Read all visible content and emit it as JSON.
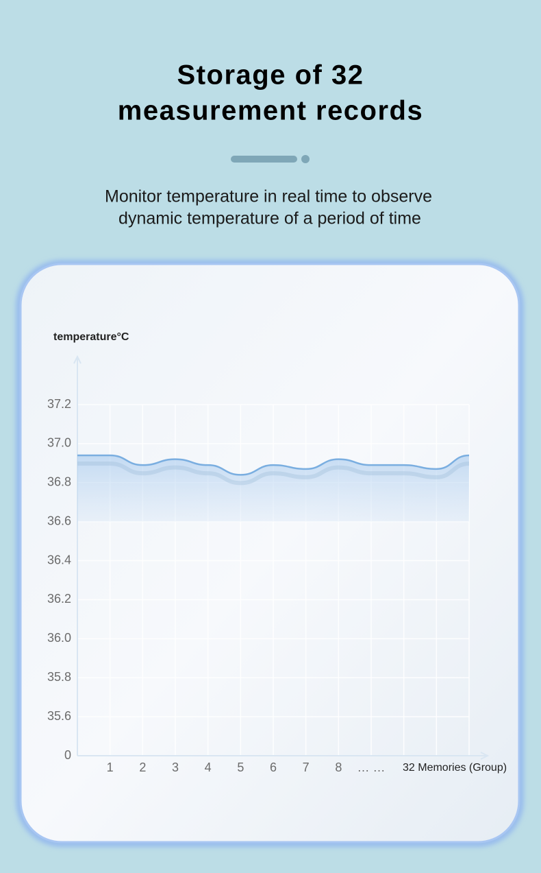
{
  "header": {
    "title_lines": [
      "Storage of 32",
      "measurement records"
    ],
    "subtitle_lines": [
      "Monitor temperature in real time to observe",
      "dynamic temperature of a period of time"
    ]
  },
  "chart_data": {
    "type": "line",
    "y_label": "temperature°C",
    "x_label": "32 Memories (Group)",
    "categories": [
      null,
      "1",
      "2",
      "3",
      "4",
      "5",
      "6",
      "7",
      "8",
      "… …",
      null,
      null,
      null
    ],
    "values": [
      36.94,
      36.94,
      36.89,
      36.92,
      36.89,
      36.84,
      36.89,
      36.87,
      36.92,
      36.89,
      36.89,
      36.87,
      36.94
    ],
    "color": "#7aaee0",
    "ylim": [
      35.4,
      37.2
    ],
    "yticks": [
      {
        "value": 35.6,
        "label": "35.6"
      },
      {
        "value": 35.8,
        "label": "35.8"
      },
      {
        "value": 36,
        "label": "36.0"
      },
      {
        "value": 36.2,
        "label": "36.2"
      },
      {
        "value": 36.4,
        "label": "36.4"
      },
      {
        "value": 36.6,
        "label": "36.6"
      },
      {
        "value": 36.8,
        "label": "36.8"
      },
      {
        "value": 37,
        "label": "37.0"
      },
      {
        "value": 37.2,
        "label": "37.2"
      }
    ],
    "axis_origin_label": "0",
    "grid": true
  }
}
